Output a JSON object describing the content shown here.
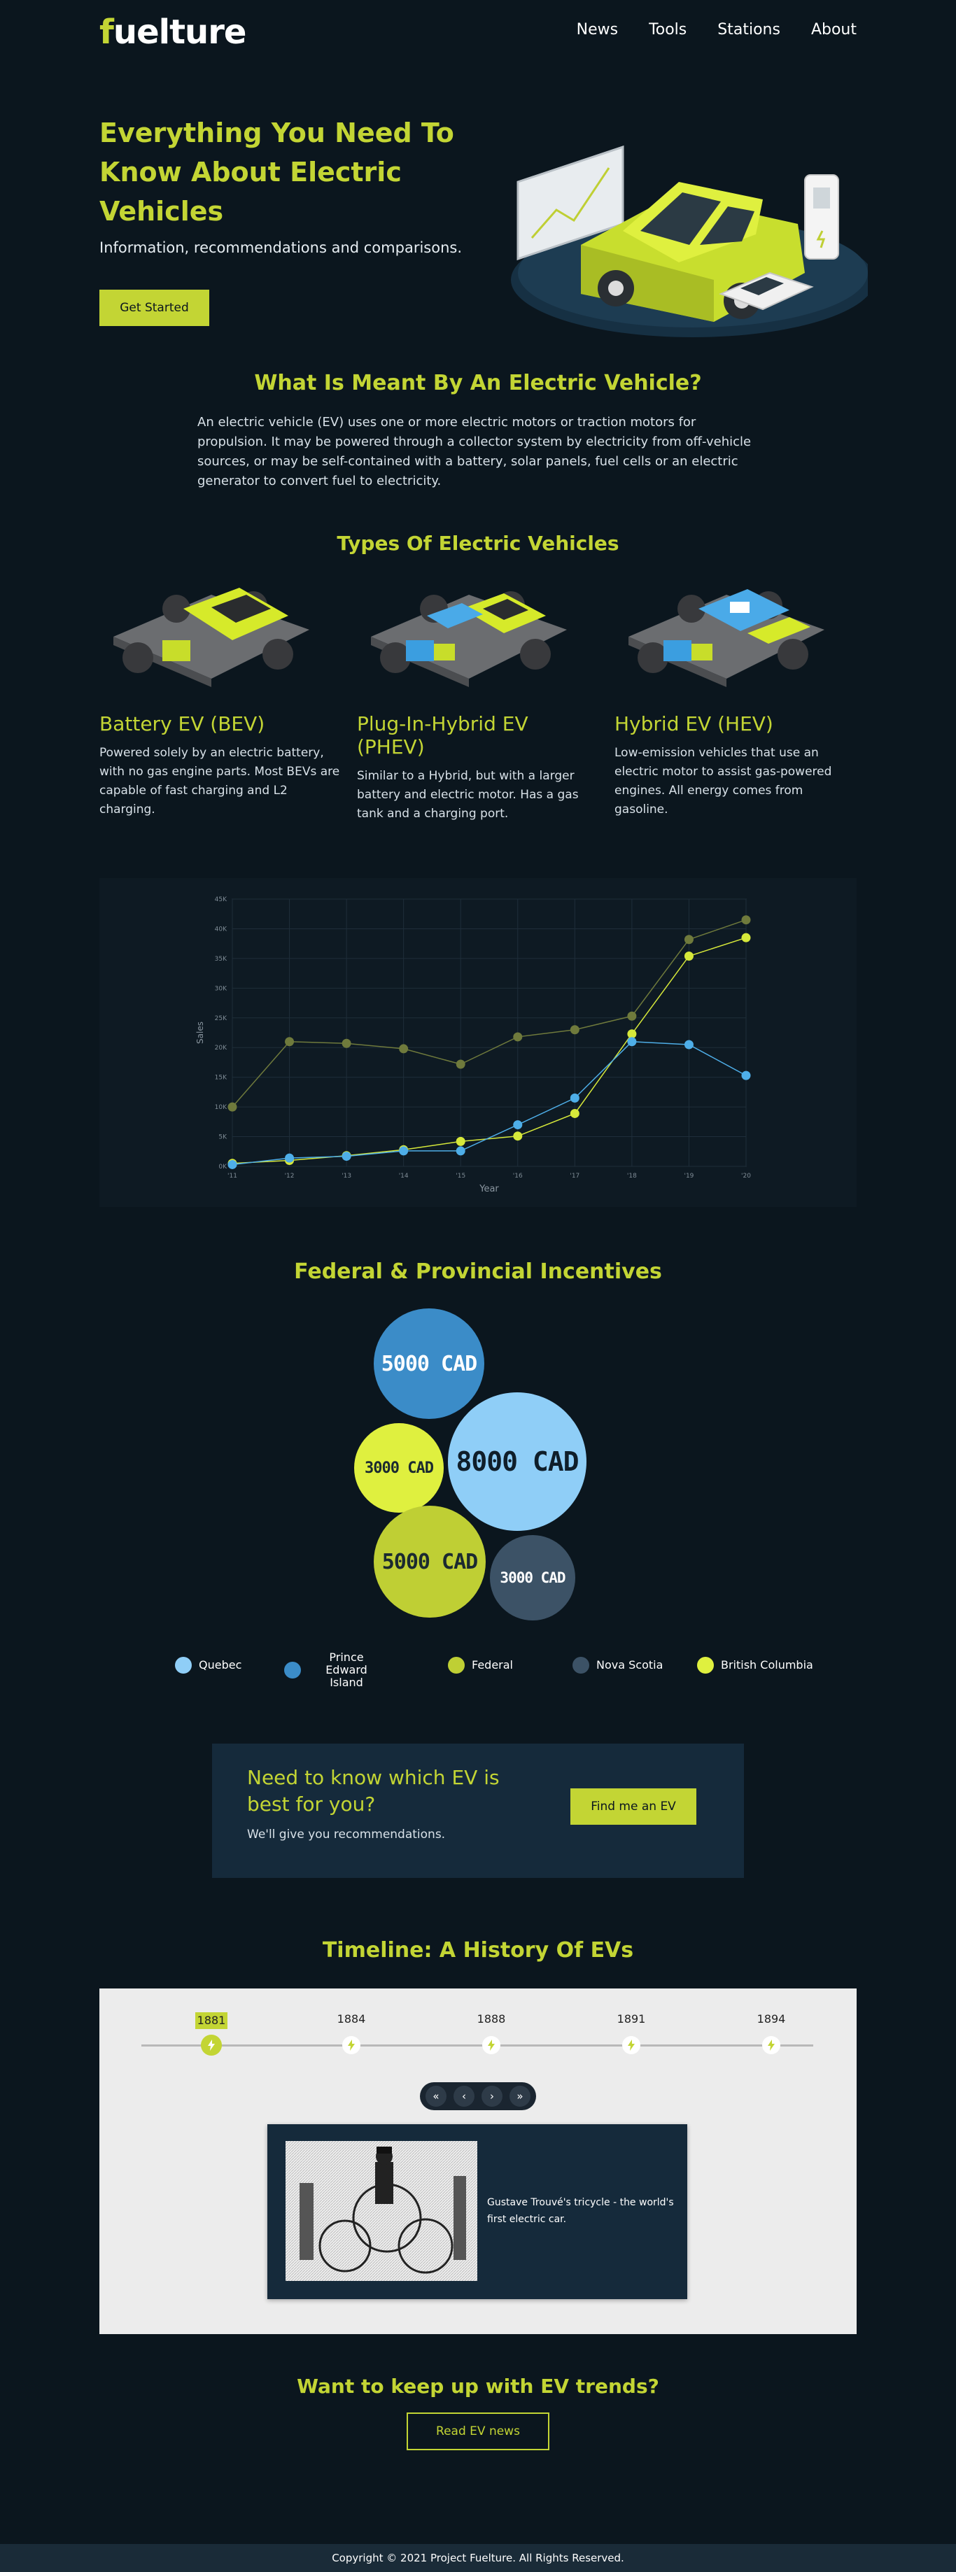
{
  "header": {
    "logo_first": "f",
    "logo_rest": "uelture",
    "nav": [
      "News",
      "Tools",
      "Stations",
      "About"
    ]
  },
  "hero": {
    "title": "Everything You Need To Know About Electric Vehicles",
    "subtitle": "Information, recommendations and comparisons.",
    "cta": "Get Started"
  },
  "what": {
    "title": "What Is Meant By An Electric Vehicle?",
    "body": "An electric vehicle (EV) uses one or more electric motors or traction motors for propulsion. It may be powered through a collector system by electricity from off-vehicle sources, or may be self-contained with a battery, solar panels, fuel cells or an electric generator to convert fuel to electricity."
  },
  "types": {
    "title": "Types Of Electric Vehicles",
    "items": [
      {
        "name": "Battery EV (BEV)",
        "desc": "Powered solely by an electric battery, with no gas engine parts. Most BEVs are capable of fast charging and L2 charging."
      },
      {
        "name": "Plug-In-Hybrid EV (PHEV)",
        "desc": "Similar to a Hybrid, but with a larger battery and electric motor. Has a gas tank and a charging port."
      },
      {
        "name": "Hybrid EV (HEV)",
        "desc": "Low-emission vehicles that use an electric motor to assist gas-powered engines. All energy comes from gasoline."
      }
    ]
  },
  "chart_data": {
    "type": "line",
    "title": "",
    "xlabel": "Year",
    "ylabel": "Sales",
    "x": [
      "'11",
      "'12",
      "'13",
      "'14",
      "'15",
      "'16",
      "'17",
      "'18",
      "'19",
      "'20"
    ],
    "ylim": [
      0,
      45
    ],
    "yticks": [
      "0K",
      "5K",
      "10K",
      "15K",
      "20K",
      "25K",
      "30K",
      "35K",
      "40K",
      "45K"
    ],
    "series": [
      {
        "color": "#6f7a3c",
        "values": [
          10,
          21,
          20.7,
          19.8,
          17.2,
          21.8,
          23,
          25.3,
          38.2,
          41.5
        ]
      },
      {
        "color": "#d6e83a",
        "values": [
          0.5,
          1,
          1.8,
          2.8,
          4.2,
          5.1,
          8.9,
          22.3,
          35.4,
          38.5
        ]
      },
      {
        "color": "#4eaee8",
        "values": [
          0.3,
          1.4,
          1.7,
          2.6,
          2.6,
          7,
          11.5,
          21,
          20.5,
          15.3
        ]
      }
    ],
    "grid": true
  },
  "incentives": {
    "title": "Federal & Provincial Incentives",
    "bubbles": [
      {
        "label": "5000 CAD",
        "color": "#3b8cc8",
        "text_color": "#ffffff"
      },
      {
        "label": "3000 CAD",
        "color": "#dff03f",
        "text_color": "#1b2a30"
      },
      {
        "label": "8000 CAD",
        "color": "#8fcef7",
        "text_color": "#0f1e2a"
      },
      {
        "label": "5000 CAD",
        "color": "#bfcf34",
        "text_color": "#1b2a30"
      },
      {
        "label": "3000 CAD",
        "color": "#3c5266",
        "text_color": "#ffffff"
      }
    ],
    "legend": [
      {
        "label": "Quebec",
        "color": "#8fcef7"
      },
      {
        "label": "Prince Edward Island",
        "color": "#3b8cc8"
      },
      {
        "label": "Federal",
        "color": "#bfcf34"
      },
      {
        "label": "Nova Scotia",
        "color": "#3c5266"
      },
      {
        "label": "British Columbia",
        "color": "#dff03f"
      }
    ]
  },
  "cta": {
    "title": "Need to know which EV is best for you?",
    "subtitle": "We'll give you recommendations.",
    "button": "Find me an EV"
  },
  "timeline": {
    "title": "Timeline: A History Of EVs",
    "years": [
      "1881",
      "1884",
      "1888",
      "1891",
      "1894"
    ],
    "active_index": 0,
    "nav": {
      "first": "«",
      "prev": "‹",
      "next": "›",
      "last": "»"
    },
    "caption": "Gustave Trouvé's tricycle - the world's first electric car."
  },
  "trends": {
    "title": "Want to keep up with EV trends?",
    "button": "Read EV news"
  },
  "footer": {
    "text": "Copyright © 2021 Project Fuelture. All Rights Reserved."
  }
}
